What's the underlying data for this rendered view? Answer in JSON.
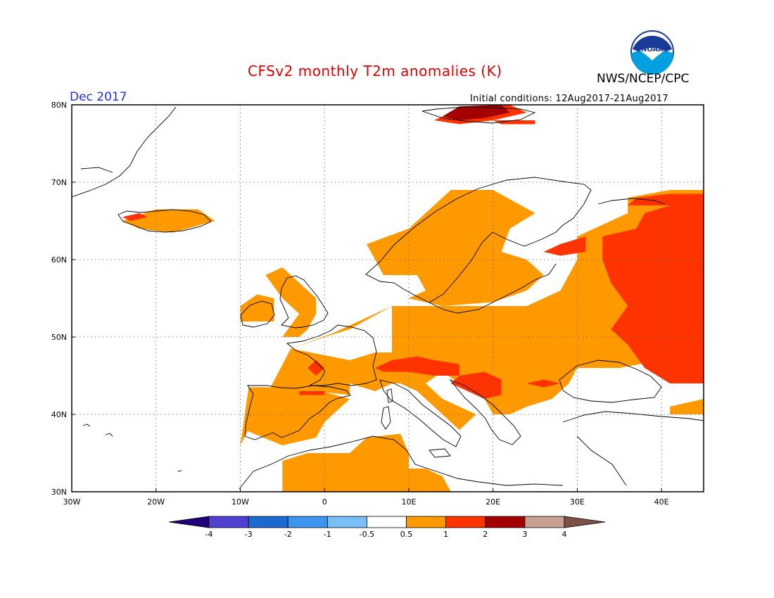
{
  "header": {
    "title": "CFSv2 monthly T2m anomalies (K)",
    "agency": "NWS/NCEP/CPC",
    "month": "Dec 2017",
    "initial_conditions": "Initial conditions: 12Aug2017-21Aug2017",
    "logo_text": "NOAA"
  },
  "map": {
    "lon_range": [
      -30,
      45
    ],
    "lat_range": [
      30,
      80
    ],
    "lon_ticks": [
      {
        "value": -30,
        "label": "30W"
      },
      {
        "value": -20,
        "label": "20W"
      },
      {
        "value": -10,
        "label": "10W"
      },
      {
        "value": 0,
        "label": "0"
      },
      {
        "value": 10,
        "label": "10E"
      },
      {
        "value": 20,
        "label": "20E"
      },
      {
        "value": 30,
        "label": "30E"
      },
      {
        "value": 40,
        "label": "40E"
      }
    ],
    "lat_ticks": [
      {
        "value": 30,
        "label": "30N"
      },
      {
        "value": 40,
        "label": "40N"
      },
      {
        "value": 50,
        "label": "50N"
      },
      {
        "value": 60,
        "label": "60N"
      },
      {
        "value": 70,
        "label": "70N"
      },
      {
        "value": 80,
        "label": "80N"
      }
    ],
    "grid": "dotted",
    "anomaly_regions": [
      {
        "level": "0.5-1",
        "color": "#ff9900",
        "points": [
          [
            -10,
            36
          ],
          [
            -9,
            43.5
          ],
          [
            -4,
            43.5
          ],
          [
            -1,
            43
          ],
          [
            3,
            42.5
          ],
          [
            3,
            47
          ],
          [
            -4,
            48.5
          ],
          [
            0,
            50
          ],
          [
            3,
            51
          ],
          [
            8,
            54
          ],
          [
            10,
            55
          ],
          [
            14,
            54
          ],
          [
            20,
            54.5
          ],
          [
            24,
            56
          ],
          [
            26,
            58
          ],
          [
            24,
            60
          ],
          [
            21,
            61
          ],
          [
            22,
            64
          ],
          [
            25,
            66
          ],
          [
            20,
            69
          ],
          [
            15,
            69
          ],
          [
            10,
            64
          ],
          [
            5,
            62
          ],
          [
            7,
            58
          ],
          [
            11,
            58
          ],
          [
            12,
            56
          ],
          [
            10,
            55
          ],
          [
            8,
            54
          ],
          [
            4,
            52
          ],
          [
            1,
            50.5
          ],
          [
            -4,
            48.5
          ]
        ]
      },
      {
        "level": "0.5-1",
        "color": "#ff9900",
        "points": [
          [
            -2,
            51
          ],
          [
            -1,
            53
          ],
          [
            -1,
            55
          ],
          [
            -3,
            57
          ],
          [
            -5,
            59
          ],
          [
            -7,
            58
          ],
          [
            -5,
            55
          ],
          [
            -3,
            53
          ],
          [
            -5,
            50
          ],
          [
            -3,
            50
          ]
        ]
      },
      {
        "level": "0.5-1",
        "color": "#ff9900",
        "points": [
          [
            -10,
            52
          ],
          [
            -6,
            52
          ],
          [
            -6,
            55
          ],
          [
            -8,
            55.5
          ],
          [
            -10,
            54
          ]
        ]
      },
      {
        "level": "0.5-1",
        "color": "#ff9900",
        "points": [
          [
            -24,
            65
          ],
          [
            -20,
            66.5
          ],
          [
            -15,
            66.5
          ],
          [
            -13,
            65
          ],
          [
            -18,
            63.5
          ],
          [
            -22,
            64
          ]
        ]
      },
      {
        "level": "0.5-1",
        "color": "#ff9900",
        "points": [
          [
            -9.5,
            38
          ],
          [
            -9,
            43.5
          ],
          [
            -2,
            43.5
          ],
          [
            3,
            42
          ],
          [
            0,
            39
          ],
          [
            -1,
            37
          ],
          [
            -5,
            36
          ]
        ]
      },
      {
        "level": "0.5-1",
        "color": "#ff9900",
        "points": [
          [
            -5,
            30
          ],
          [
            -5,
            34
          ],
          [
            -2,
            35
          ],
          [
            3,
            35
          ],
          [
            5,
            37
          ],
          [
            9,
            37.5
          ],
          [
            10,
            35
          ],
          [
            10,
            33
          ],
          [
            12,
            33
          ],
          [
            14,
            32
          ],
          [
            15,
            30
          ]
        ]
      },
      {
        "level": "0.5-1",
        "color": "#ff9900",
        "points": [
          [
            3,
            44
          ],
          [
            3,
            47
          ],
          [
            6,
            48
          ],
          [
            8,
            48
          ],
          [
            8,
            54
          ],
          [
            14,
            54
          ],
          [
            20,
            54
          ],
          [
            24,
            54
          ],
          [
            28,
            56
          ],
          [
            30,
            60
          ],
          [
            30,
            63
          ],
          [
            36,
            66
          ],
          [
            36,
            68
          ],
          [
            41,
            69
          ],
          [
            45,
            69
          ],
          [
            45,
            53
          ],
          [
            42,
            49
          ],
          [
            40,
            47
          ],
          [
            35,
            46
          ],
          [
            30,
            46
          ],
          [
            29,
            44
          ],
          [
            27,
            42
          ],
          [
            24,
            41
          ],
          [
            22,
            40
          ],
          [
            20,
            40
          ],
          [
            19,
            42
          ],
          [
            16,
            44
          ],
          [
            14,
            45.5
          ],
          [
            12,
            44
          ],
          [
            10,
            44
          ],
          [
            8,
            44
          ],
          [
            6,
            43
          ]
        ]
      },
      {
        "level": "0.5-1",
        "color": "#ff9900",
        "points": [
          [
            9,
            44
          ],
          [
            12,
            44
          ],
          [
            14,
            42
          ],
          [
            16,
            41
          ],
          [
            18,
            40
          ],
          [
            16,
            38
          ],
          [
            15,
            39
          ],
          [
            13,
            41
          ],
          [
            11,
            43
          ]
        ]
      },
      {
        "level": "0.5-1",
        "color": "#ff9900",
        "points": [
          [
            41,
            40
          ],
          [
            45,
            40
          ],
          [
            45,
            42
          ],
          [
            41,
            41
          ]
        ]
      },
      {
        "level": "1-2",
        "color": "#ff3300",
        "points": [
          [
            33,
            63
          ],
          [
            37,
            64
          ],
          [
            38,
            66
          ],
          [
            41,
            67
          ],
          [
            45,
            67
          ],
          [
            45,
            44
          ],
          [
            41,
            44
          ],
          [
            38,
            46
          ],
          [
            36,
            49
          ],
          [
            34,
            51
          ],
          [
            36,
            54
          ],
          [
            34,
            57
          ],
          [
            33,
            60
          ]
        ]
      },
      {
        "level": "1-2",
        "color": "#ff3300",
        "points": [
          [
            36,
            67
          ],
          [
            37,
            68
          ],
          [
            41,
            68.5
          ],
          [
            45,
            68.5
          ],
          [
            45,
            67
          ],
          [
            40,
            67
          ]
        ]
      },
      {
        "level": "1-2",
        "color": "#ff3300",
        "points": [
          [
            26,
            61
          ],
          [
            28,
            62
          ],
          [
            31,
            63
          ],
          [
            31,
            61
          ],
          [
            28,
            60.5
          ]
        ]
      },
      {
        "level": "1-2",
        "color": "#ff3300",
        "points": [
          [
            6,
            46
          ],
          [
            8,
            47
          ],
          [
            11,
            47.5
          ],
          [
            13,
            47
          ],
          [
            16,
            46.5
          ],
          [
            16,
            45
          ],
          [
            13,
            45
          ],
          [
            10,
            45.5
          ],
          [
            7,
            45.5
          ]
        ]
      },
      {
        "level": "1-2",
        "color": "#ff3300",
        "points": [
          [
            16,
            45
          ],
          [
            19,
            45.5
          ],
          [
            21,
            44.5
          ],
          [
            21,
            42.5
          ],
          [
            19,
            42
          ],
          [
            17,
            43
          ],
          [
            15,
            44
          ]
        ]
      },
      {
        "level": "1-2",
        "color": "#ff3300",
        "points": [
          [
            -2,
            46
          ],
          [
            -1,
            47
          ],
          [
            0,
            46
          ],
          [
            -1,
            45
          ]
        ]
      },
      {
        "level": "1-2",
        "color": "#ff3300",
        "points": [
          [
            -3,
            43
          ],
          [
            0,
            43
          ],
          [
            0,
            42.5
          ],
          [
            -3,
            42.5
          ]
        ]
      },
      {
        "level": "1-2",
        "color": "#ff3300",
        "points": [
          [
            24,
            44
          ],
          [
            26,
            44.5
          ],
          [
            28,
            44
          ],
          [
            26,
            43.5
          ]
        ]
      },
      {
        "level": "1-2",
        "color": "#ff3300",
        "points": [
          [
            -24,
            65.5
          ],
          [
            -22,
            66
          ],
          [
            -21,
            65.5
          ],
          [
            -23,
            65
          ]
        ]
      },
      {
        "level": "1-2",
        "color": "#ff3300",
        "points": [
          [
            13,
            78
          ],
          [
            16,
            79.5
          ],
          [
            22,
            80
          ],
          [
            24,
            79
          ],
          [
            20,
            78
          ],
          [
            16,
            77.5
          ]
        ]
      },
      {
        "level": "1-2",
        "color": "#ff3300",
        "points": [
          [
            20,
            78
          ],
          [
            25,
            78
          ],
          [
            25,
            77.5
          ],
          [
            21,
            77.5
          ]
        ]
      },
      {
        "level": "2-3",
        "color": "#a50000",
        "points": [
          [
            14,
            78.5
          ],
          [
            16,
            79.8
          ],
          [
            21,
            80
          ],
          [
            22,
            79
          ],
          [
            19,
            78.3
          ],
          [
            16,
            78
          ]
        ]
      }
    ]
  },
  "colorbar": {
    "labels": [
      "-4",
      "-3",
      "-2",
      "-1",
      "-0.5",
      "0.5",
      "1",
      "2",
      "3",
      "4"
    ],
    "colors": [
      "#20007a",
      "#5040d0",
      "#1a6ad0",
      "#3c96f0",
      "#78bff8",
      "#ffffff",
      "#ff9900",
      "#ff3300",
      "#a50000",
      "#c8a090",
      "#7a5048"
    ]
  }
}
